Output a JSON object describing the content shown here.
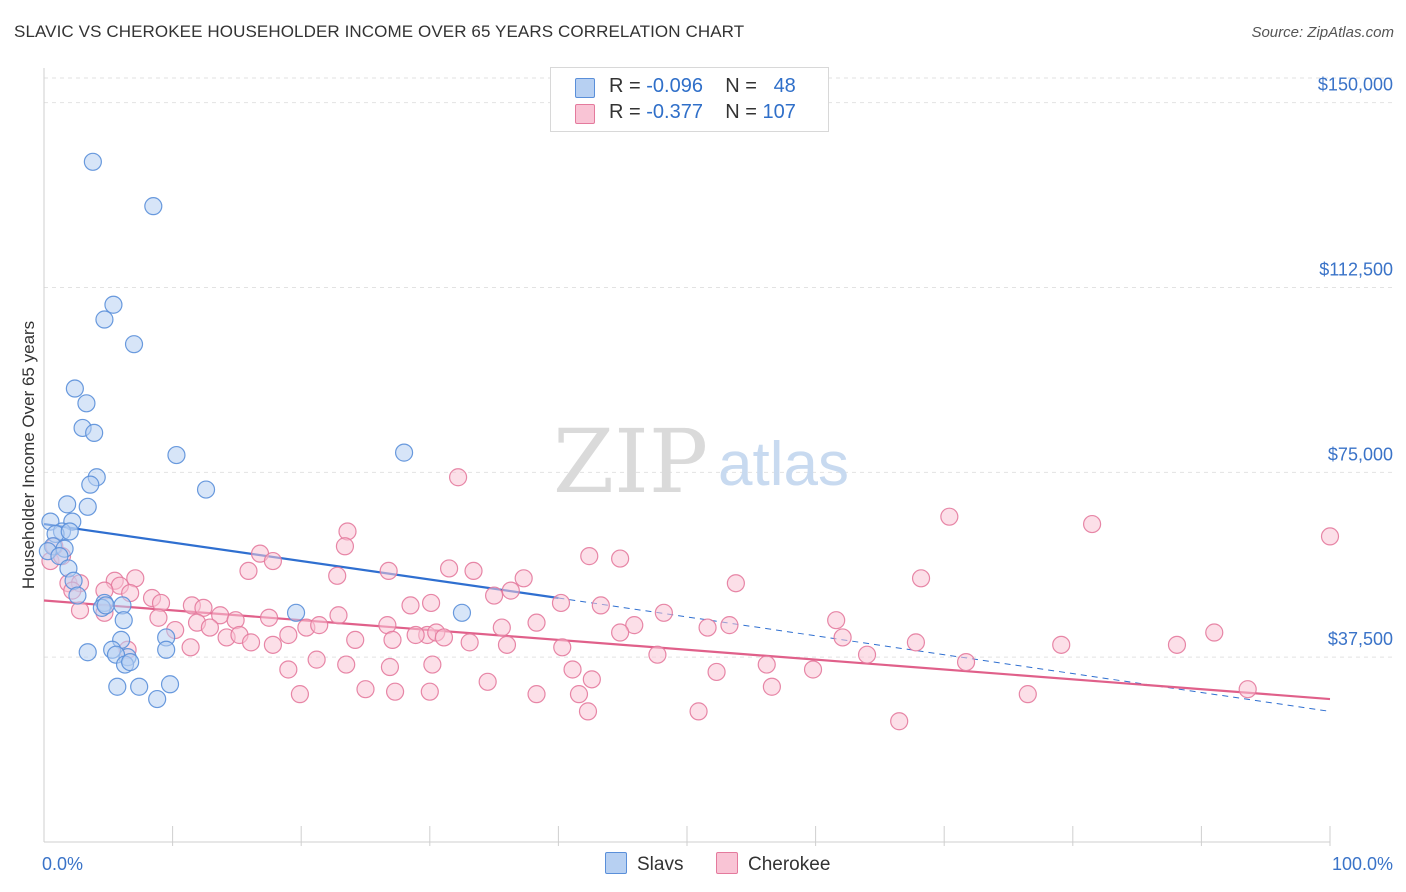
{
  "title": "SLAVIC VS CHEROKEE HOUSEHOLDER INCOME OVER 65 YEARS CORRELATION CHART",
  "source": "Source: ZipAtlas.com",
  "watermark": {
    "zip": "ZIP",
    "atlas": "atlas"
  },
  "legend": {
    "r_label": "R =",
    "n_label": "N =",
    "rows": [
      {
        "r": "-0.096",
        "n": "48",
        "fill": "#b7d0f2",
        "stroke": "#5a8fd9"
      },
      {
        "r": "-0.377",
        "n": "107",
        "fill": "#f9c4d5",
        "stroke": "#e47a9d"
      }
    ]
  },
  "bottom_legend": [
    {
      "label": "Slavs",
      "fill": "#b7d0f2",
      "stroke": "#5a8fd9"
    },
    {
      "label": "Cherokee",
      "fill": "#f9c4d5",
      "stroke": "#e47a9d"
    }
  ],
  "chart_data": {
    "type": "scatter",
    "title": "SLAVIC VS CHEROKEE HOUSEHOLDER INCOME OVER 65 YEARS CORRELATION CHART",
    "xlabel": "",
    "ylabel": "Householder Income Over 65 years",
    "xlim": [
      0,
      100
    ],
    "ylim": [
      0,
      155000
    ],
    "x_tick_labels": [
      "0.0%",
      "100.0%"
    ],
    "y_ticks": [
      37500,
      75000,
      112500,
      150000
    ],
    "y_tick_labels": [
      "$37,500",
      "$75,000",
      "$112,500",
      "$150,000"
    ],
    "grid": true,
    "legend_position": "top-center",
    "series": [
      {
        "name": "Slavs",
        "color": "#5a8fd9",
        "fill": "#b7d0f2",
        "trend_color": "#2f6fd0",
        "trend": {
          "x": [
            0,
            40
          ],
          "y": [
            64500,
            49500
          ],
          "dashed_to_x": 100,
          "dashed_to_y": 26500
        },
        "points": [
          [
            3.8,
            138000
          ],
          [
            8.5,
            129000
          ],
          [
            5.4,
            109000
          ],
          [
            4.7,
            106000
          ],
          [
            7.0,
            101000
          ],
          [
            2.4,
            92000
          ],
          [
            3.3,
            89000
          ],
          [
            3.0,
            84000
          ],
          [
            3.9,
            83000
          ],
          [
            10.3,
            78500
          ],
          [
            28.0,
            79000
          ],
          [
            4.1,
            74000
          ],
          [
            3.6,
            72500
          ],
          [
            12.6,
            71500
          ],
          [
            1.8,
            68500
          ],
          [
            3.4,
            68000
          ],
          [
            0.5,
            65000
          ],
          [
            2.2,
            65000
          ],
          [
            1.4,
            63000
          ],
          [
            0.9,
            62500
          ],
          [
            2.0,
            63000
          ],
          [
            0.7,
            60000
          ],
          [
            0.3,
            59000
          ],
          [
            1.6,
            59500
          ],
          [
            1.2,
            58000
          ],
          [
            1.9,
            55500
          ],
          [
            2.3,
            53000
          ],
          [
            4.7,
            48500
          ],
          [
            4.5,
            47500
          ],
          [
            4.8,
            48000
          ],
          [
            6.1,
            48000
          ],
          [
            19.6,
            46500
          ],
          [
            32.5,
            46500
          ],
          [
            2.6,
            50000
          ],
          [
            6.2,
            45000
          ],
          [
            6.0,
            41000
          ],
          [
            9.5,
            41500
          ],
          [
            5.3,
            39000
          ],
          [
            9.5,
            39000
          ],
          [
            3.4,
            38500
          ],
          [
            6.5,
            37500
          ],
          [
            5.6,
            38000
          ],
          [
            6.3,
            36000
          ],
          [
            6.7,
            36500
          ],
          [
            9.8,
            32000
          ],
          [
            5.7,
            31500
          ],
          [
            7.4,
            31500
          ],
          [
            8.8,
            29000
          ]
        ]
      },
      {
        "name": "Cherokee",
        "color": "#e47a9d",
        "fill": "#f9c4d5",
        "trend_color": "#e0608a",
        "trend": {
          "x": [
            0,
            100
          ],
          "y": [
            49000,
            29000
          ]
        },
        "points": [
          [
            32.2,
            74000
          ],
          [
            100.0,
            62000
          ],
          [
            70.4,
            66000
          ],
          [
            81.5,
            64500
          ],
          [
            23.6,
            63000
          ],
          [
            23.4,
            60000
          ],
          [
            16.8,
            58500
          ],
          [
            17.8,
            57000
          ],
          [
            15.9,
            55000
          ],
          [
            31.5,
            55500
          ],
          [
            33.4,
            55000
          ],
          [
            26.8,
            55000
          ],
          [
            22.8,
            54000
          ],
          [
            42.4,
            58000
          ],
          [
            44.8,
            57500
          ],
          [
            37.3,
            53500
          ],
          [
            53.8,
            52500
          ],
          [
            68.2,
            53500
          ],
          [
            0.5,
            57000
          ],
          [
            1.4,
            58000
          ],
          [
            0.8,
            60000
          ],
          [
            1.9,
            52500
          ],
          [
            2.8,
            52500
          ],
          [
            5.5,
            53000
          ],
          [
            7.1,
            53500
          ],
          [
            5.9,
            52000
          ],
          [
            2.2,
            51000
          ],
          [
            4.7,
            51000
          ],
          [
            6.7,
            50500
          ],
          [
            11.5,
            48000
          ],
          [
            8.4,
            49500
          ],
          [
            9.1,
            48500
          ],
          [
            12.4,
            47500
          ],
          [
            13.7,
            46000
          ],
          [
            28.5,
            48000
          ],
          [
            30.1,
            48500
          ],
          [
            35.0,
            50000
          ],
          [
            36.3,
            51000
          ],
          [
            40.2,
            48500
          ],
          [
            43.3,
            48000
          ],
          [
            48.2,
            46500
          ],
          [
            61.6,
            45000
          ],
          [
            2.8,
            47000
          ],
          [
            4.7,
            46500
          ],
          [
            8.9,
            45500
          ],
          [
            11.9,
            44500
          ],
          [
            14.9,
            45000
          ],
          [
            17.5,
            45500
          ],
          [
            20.4,
            43500
          ],
          [
            21.4,
            44000
          ],
          [
            22.9,
            46000
          ],
          [
            26.7,
            44000
          ],
          [
            29.8,
            42000
          ],
          [
            30.5,
            42500
          ],
          [
            35.6,
            43500
          ],
          [
            38.3,
            44500
          ],
          [
            45.9,
            44000
          ],
          [
            51.6,
            43500
          ],
          [
            53.3,
            44000
          ],
          [
            62.1,
            41500
          ],
          [
            67.8,
            40500
          ],
          [
            79.1,
            40000
          ],
          [
            88.1,
            40000
          ],
          [
            91.0,
            42500
          ],
          [
            10.2,
            43000
          ],
          [
            12.9,
            43500
          ],
          [
            14.2,
            41500
          ],
          [
            15.2,
            42000
          ],
          [
            16.1,
            40500
          ],
          [
            17.8,
            40000
          ],
          [
            19.0,
            42000
          ],
          [
            24.2,
            41000
          ],
          [
            27.1,
            41000
          ],
          [
            28.9,
            42000
          ],
          [
            31.1,
            41500
          ],
          [
            33.1,
            40500
          ],
          [
            36.0,
            40000
          ],
          [
            40.3,
            39500
          ],
          [
            44.8,
            42500
          ],
          [
            47.7,
            38000
          ],
          [
            6.5,
            39000
          ],
          [
            11.4,
            39500
          ],
          [
            21.2,
            37000
          ],
          [
            23.5,
            36000
          ],
          [
            26.9,
            35500
          ],
          [
            30.2,
            36000
          ],
          [
            41.1,
            35000
          ],
          [
            52.3,
            34500
          ],
          [
            56.2,
            36000
          ],
          [
            59.8,
            35000
          ],
          [
            64.0,
            38000
          ],
          [
            71.7,
            36500
          ],
          [
            76.5,
            30000
          ],
          [
            93.6,
            31000
          ],
          [
            19.0,
            35000
          ],
          [
            19.9,
            30000
          ],
          [
            25.0,
            31000
          ],
          [
            27.3,
            30500
          ],
          [
            30.0,
            30500
          ],
          [
            34.5,
            32500
          ],
          [
            38.3,
            30000
          ],
          [
            41.6,
            30000
          ],
          [
            42.6,
            33000
          ],
          [
            42.3,
            26500
          ],
          [
            50.9,
            26500
          ],
          [
            56.6,
            31500
          ],
          [
            66.5,
            24500
          ]
        ]
      }
    ]
  }
}
